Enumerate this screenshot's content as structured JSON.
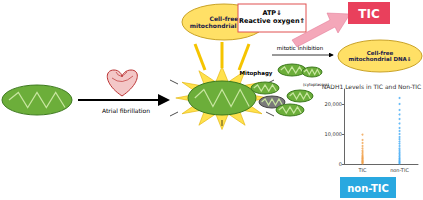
{
  "labels": {
    "left_arrow": "Atrial fibrillation",
    "release_up": "Cell-free mitochondrial DNA⇑",
    "stress": "ATP⇓ Reactive oxygen⇑",
    "tic": "TIC",
    "release_down": "Cell-free mitochondrial DNA⇓",
    "mitotic": "mitotic inhibition",
    "mitophagy": "Mitophagy",
    "cytoplasm": "(cytoplasma)",
    "non_tic": "non-TIC"
  },
  "chart_data": {
    "type": "scatter",
    "title": "NADH1 Levels in TIC and Non-TIC",
    "categories": [
      "TIC",
      "non-TIC"
    ],
    "values": [
      [
        200,
        400,
        600,
        800,
        1000,
        1200,
        1500,
        1800,
        2000,
        2300,
        2600,
        3000,
        3500,
        4000,
        4500,
        5200,
        6000,
        7000,
        8000,
        9800
      ],
      [
        200,
        500,
        800,
        1200,
        1600,
        2000,
        2500,
        3000,
        3500,
        4000,
        4600,
        5200,
        6000,
        6800,
        7500,
        8300,
        9000,
        10000,
        11000,
        12000,
        13500,
        15000,
        16500,
        18000,
        20000,
        22000
      ]
    ],
    "colors": [
      "#f0a04b",
      "#3fa9f5"
    ],
    "ylim": [
      0,
      25000
    ],
    "yticks": [
      0,
      10000,
      20000
    ],
    "grid": false
  }
}
